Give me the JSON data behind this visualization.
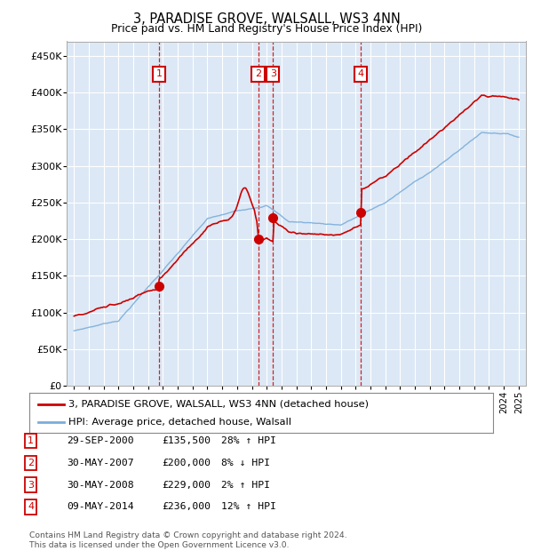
{
  "title": "3, PARADISE GROVE, WALSALL, WS3 4NN",
  "subtitle": "Price paid vs. HM Land Registry's House Price Index (HPI)",
  "ylim": [
    0,
    470000
  ],
  "yticks": [
    0,
    50000,
    100000,
    150000,
    200000,
    250000,
    300000,
    350000,
    400000,
    450000
  ],
  "background_color": "#ffffff",
  "plot_bg_color": "#dce8f5",
  "grid_color": "#ffffff",
  "sale_color": "#cc0000",
  "hpi_color": "#7aaddb",
  "sales": [
    {
      "label": "1",
      "date_num": 2000.75,
      "price": 135500
    },
    {
      "label": "2",
      "date_num": 2007.42,
      "price": 200000
    },
    {
      "label": "3",
      "date_num": 2008.42,
      "price": 229000
    },
    {
      "label": "4",
      "date_num": 2014.36,
      "price": 236000
    }
  ],
  "legend_entries": [
    "3, PARADISE GROVE, WALSALL, WS3 4NN (detached house)",
    "HPI: Average price, detached house, Walsall"
  ],
  "table_rows": [
    [
      "1",
      "29-SEP-2000",
      "£135,500",
      "28% ↑ HPI"
    ],
    [
      "2",
      "30-MAY-2007",
      "£200,000",
      "8% ↓ HPI"
    ],
    [
      "3",
      "30-MAY-2008",
      "£229,000",
      "2% ↑ HPI"
    ],
    [
      "4",
      "09-MAY-2014",
      "£236,000",
      "12% ↑ HPI"
    ]
  ],
  "footnote": "Contains HM Land Registry data © Crown copyright and database right 2024.\nThis data is licensed under the Open Government Licence v3.0.",
  "xmin": 1994.5,
  "xmax": 2025.5
}
